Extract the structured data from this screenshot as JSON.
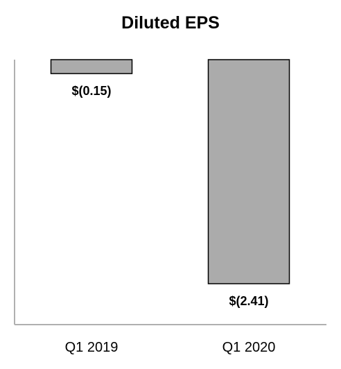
{
  "chart_data": {
    "type": "bar",
    "title": "Diluted EPS",
    "xlabel": "",
    "ylabel": "",
    "categories": [
      "Q1 2019",
      "Q1 2020"
    ],
    "values": [
      -0.15,
      -2.41
    ],
    "data_labels": [
      "$(0.15)",
      "$(2.41)"
    ],
    "ylim": [
      -2.85,
      0
    ],
    "grid": false,
    "legend": "none",
    "colors": {
      "bar_fill": "#ababab",
      "bar_stroke": "#000000",
      "axis": "#b0b0b0",
      "text": "#000000"
    }
  }
}
